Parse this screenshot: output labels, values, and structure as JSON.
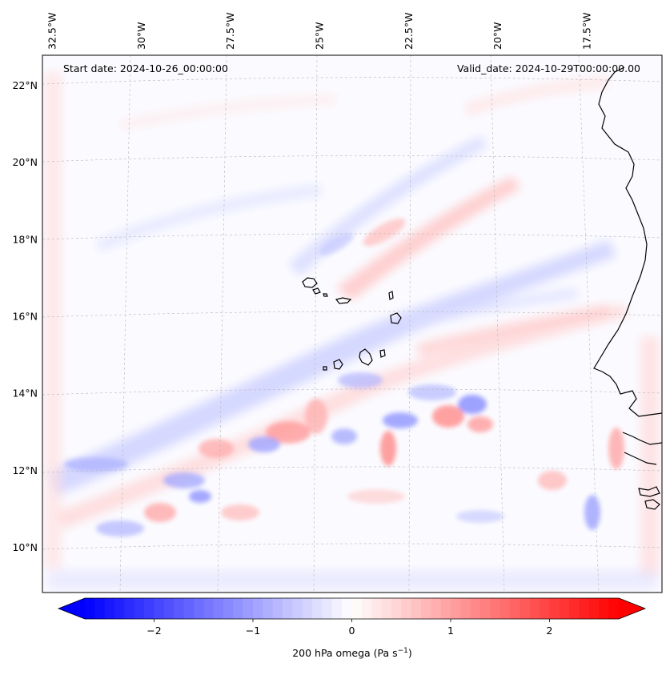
{
  "header": {
    "start_date": "Start date: 2024-10-26_00:00:00",
    "valid_date": "Valid_date: 2024-10-29T00:00:00.00"
  },
  "map": {
    "projection": "lambert-conformal",
    "gridlines": true,
    "lon_ticks": [
      {
        "value": -32.5,
        "label": "32.5°W"
      },
      {
        "value": -30.0,
        "label": "30°W"
      },
      {
        "value": -27.5,
        "label": "27.5°W"
      },
      {
        "value": -25.0,
        "label": "25°W"
      },
      {
        "value": -22.5,
        "label": "22.5°W"
      },
      {
        "value": -20.0,
        "label": "20°W"
      },
      {
        "value": -17.5,
        "label": "17.5°W"
      }
    ],
    "lat_ticks": [
      {
        "value": 22,
        "label": "22°N"
      },
      {
        "value": 20,
        "label": "20°N"
      },
      {
        "value": 18,
        "label": "18°N"
      },
      {
        "value": 16,
        "label": "16°N"
      },
      {
        "value": 14,
        "label": "14°N"
      },
      {
        "value": 12,
        "label": "12°N"
      },
      {
        "value": 10,
        "label": "10°N"
      }
    ],
    "features": [
      "Cabo Verde islands",
      "West African coastline"
    ],
    "colors": {
      "negative": "#0000ff",
      "zero": "#ffffff",
      "positive": "#ff0000",
      "coastline": "#000000",
      "gridline": "#b0b0b0"
    }
  },
  "colorbar": {
    "label": "200 hPa omega (Pa s",
    "label_sup": "−1",
    "label_end": ")",
    "min": -2.7,
    "max": 2.7,
    "extend": "both",
    "ticks": [
      {
        "value": -2,
        "label": "−2"
      },
      {
        "value": -1,
        "label": "−1"
      },
      {
        "value": 0,
        "label": "0"
      },
      {
        "value": 1,
        "label": "1"
      },
      {
        "value": 2,
        "label": "2"
      }
    ]
  }
}
